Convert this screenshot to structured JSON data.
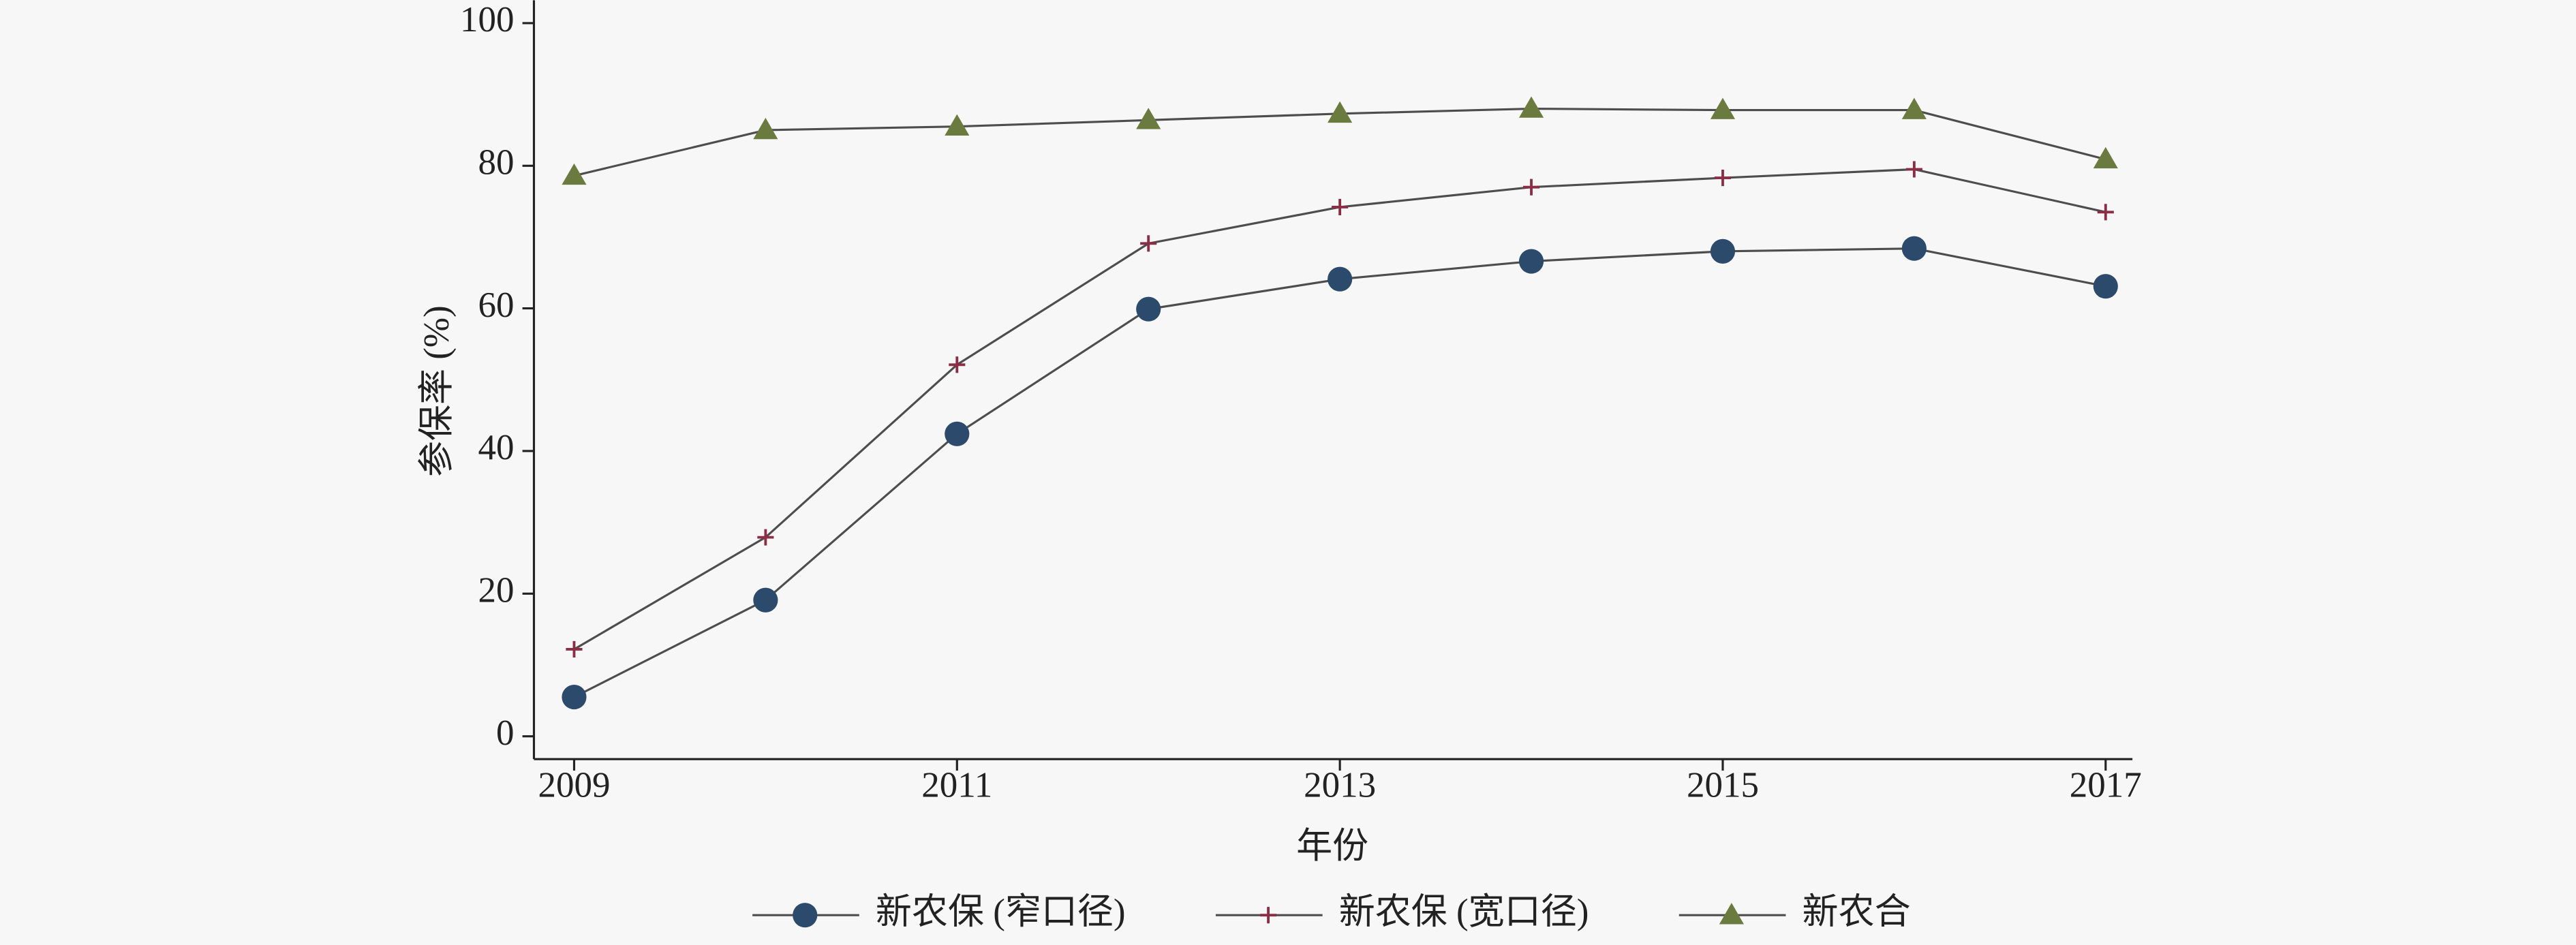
{
  "chart_data": {
    "type": "line",
    "x_label": "年份",
    "y_label": "参保率 (%)",
    "x": [
      2009,
      2010,
      2011,
      2012,
      2013,
      2014,
      2015,
      2016,
      2017
    ],
    "series": [
      {
        "name": "新农保 (窄口径)",
        "color": "#2c4a6b",
        "marker": "circle",
        "values": [
          5.5,
          19.1,
          42.4,
          59.9,
          64.1,
          66.6,
          68.0,
          68.4,
          63.1
        ]
      },
      {
        "name": "新农保 (宽口径)",
        "color": "#8b2e45",
        "marker": "plus",
        "values": [
          12.2,
          27.9,
          52.1,
          69.1,
          74.2,
          77.0,
          78.3,
          79.5,
          73.5
        ]
      },
      {
        "name": "新农合",
        "color": "#6b7a3f",
        "marker": "triangle",
        "values": [
          78.6,
          85.0,
          85.5,
          86.4,
          87.3,
          88.0,
          87.8,
          87.8,
          80.9
        ]
      }
    ],
    "line_color": "#4d4d4d",
    "xlim": [
      2008.79,
      2017.14
    ],
    "xticks": [
      2009,
      2011,
      2013,
      2015,
      2017
    ],
    "ylim": [
      -3.2,
      103.2
    ],
    "yticks": [
      0,
      20,
      40,
      60,
      80,
      100
    ],
    "grid": false,
    "legend": "bottom"
  }
}
